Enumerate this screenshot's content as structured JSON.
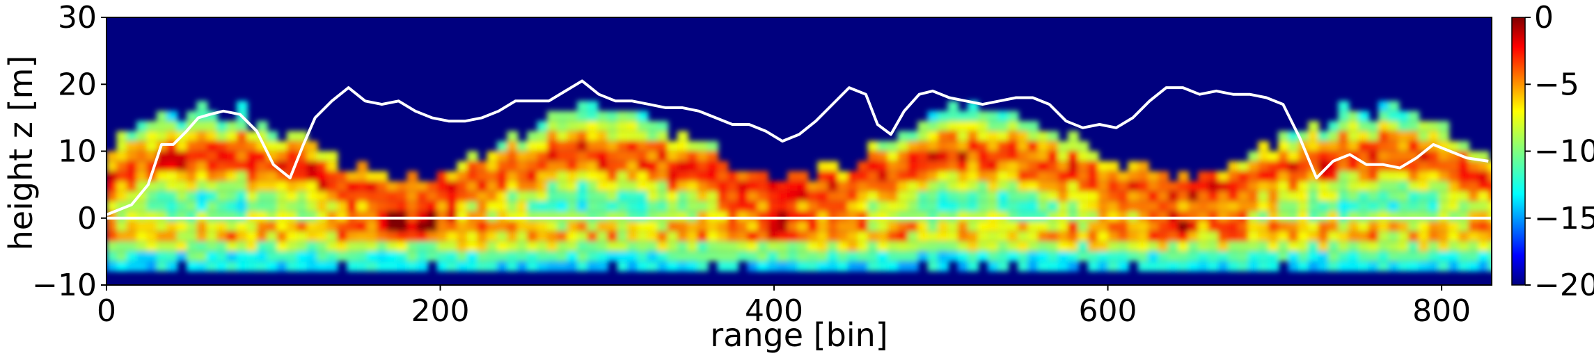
{
  "chart_data": {
    "type": "heatmap",
    "xlabel": "range [bin]",
    "ylabel": "height z [m]",
    "xlim": [
      0,
      830
    ],
    "ylim": [
      -10,
      30
    ],
    "xticks": [
      0,
      200,
      400,
      600,
      800
    ],
    "yticks": [
      -10,
      0,
      10,
      20,
      30
    ],
    "colorbar": {
      "range": [
        -20,
        0
      ],
      "ticks": [
        0,
        -5,
        -10,
        -15,
        -20
      ],
      "tick_labels": [
        "0",
        "−5",
        "−10",
        "−15",
        "−20"
      ],
      "colormap": "jet"
    },
    "grid": false,
    "series": [
      {
        "type": "line",
        "color": "#ffffff",
        "x": [
          0,
          15,
          25,
          33,
          40,
          48,
          55,
          62,
          70,
          80,
          90,
          100,
          110,
          118,
          125,
          135,
          145,
          155,
          165,
          175,
          185,
          195,
          205,
          215,
          225,
          235,
          245,
          255,
          265,
          275,
          285,
          295,
          305,
          315,
          325,
          335,
          345,
          355,
          365,
          375,
          385,
          395,
          405,
          415,
          425,
          435,
          445,
          455,
          462,
          470,
          478,
          487,
          495,
          505,
          515,
          525,
          535,
          545,
          555,
          565,
          575,
          585,
          595,
          605,
          615,
          625,
          635,
          645,
          655,
          665,
          675,
          685,
          695,
          705,
          715,
          725,
          735,
          745,
          755,
          765,
          775,
          785,
          795,
          805,
          815,
          828
        ],
        "y": [
          0.5,
          2,
          5,
          11,
          11,
          13,
          15,
          15.5,
          16,
          15.5,
          13,
          8,
          6,
          11,
          15,
          17.5,
          19.5,
          17.5,
          17,
          17.5,
          16,
          15,
          14.5,
          14.5,
          15,
          16,
          17.5,
          17.5,
          17.5,
          19,
          20.5,
          18.5,
          17.5,
          17.5,
          17,
          16.5,
          16.5,
          16,
          15,
          14,
          14,
          13,
          11.5,
          12.5,
          14.5,
          17,
          19.5,
          18.5,
          14,
          12.5,
          16,
          18.5,
          19,
          18,
          17.5,
          17,
          17.5,
          18,
          18,
          17,
          14.5,
          13.5,
          14,
          13.5,
          15,
          17.5,
          19.5,
          19.5,
          18.5,
          19,
          18.5,
          18.5,
          18,
          17,
          12,
          6,
          8.5,
          9.5,
          8,
          8,
          7.5,
          9,
          11,
          10,
          9,
          8.5
        ]
      },
      {
        "type": "line",
        "color": "#ffffff",
        "x": [
          0,
          830
        ],
        "y": [
          0,
          0
        ]
      }
    ]
  }
}
